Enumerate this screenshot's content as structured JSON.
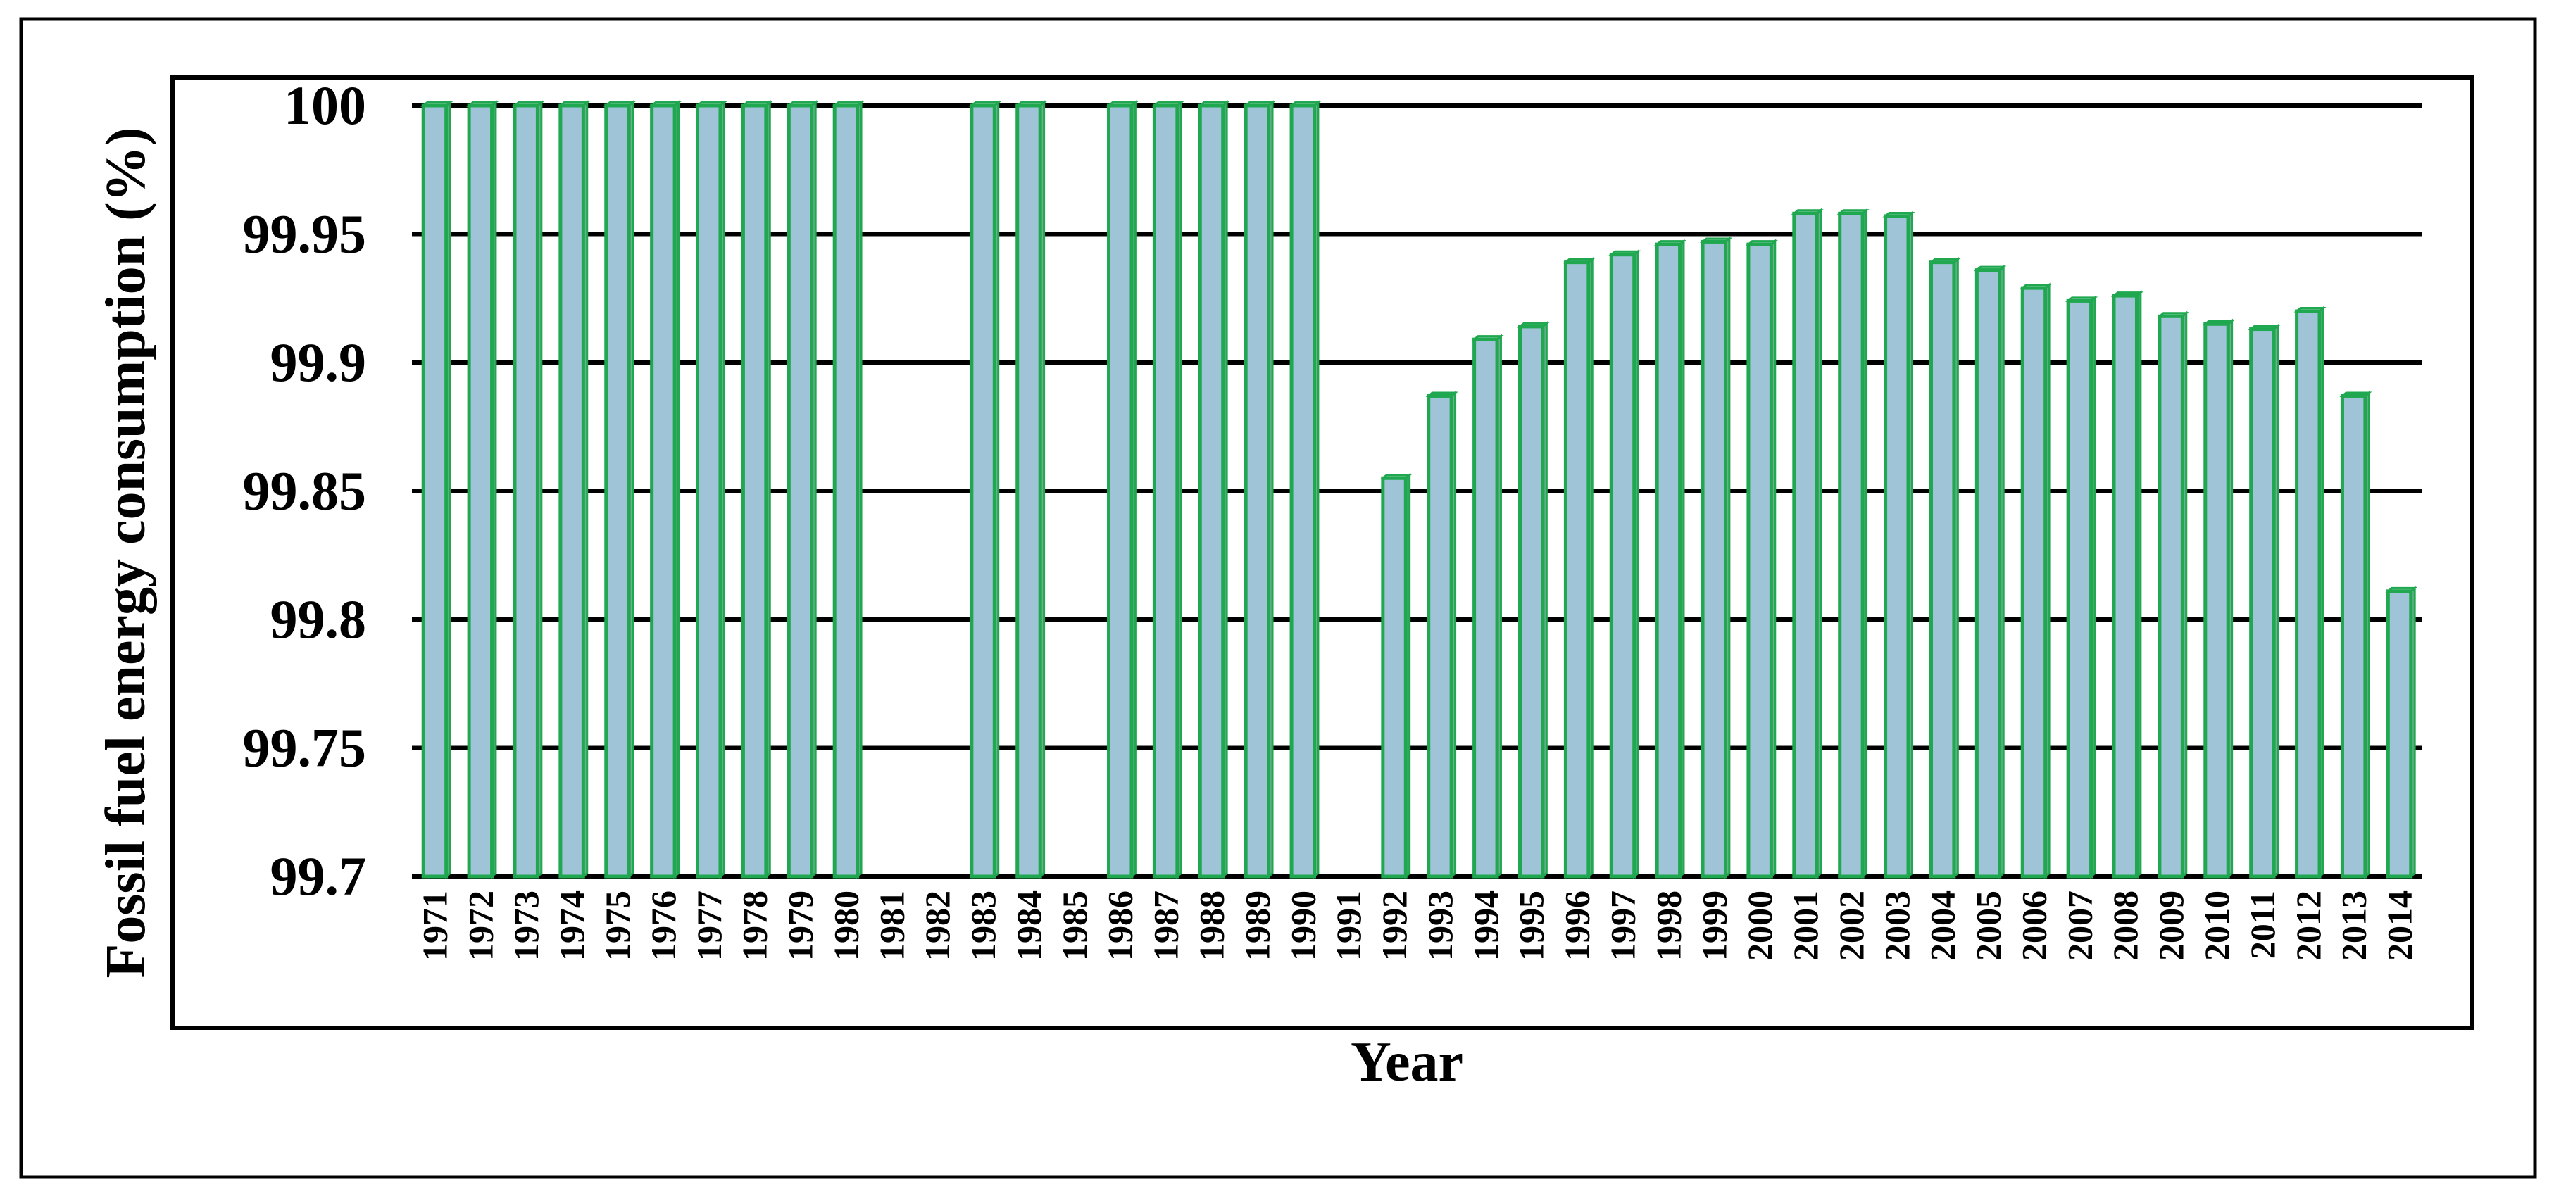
{
  "chart_data": {
    "type": "bar",
    "xlabel": "Year",
    "ylabel": "Fossil fuel energy consumption (%)",
    "ylim": [
      99.7,
      100
    ],
    "yticks": [
      "99.7",
      "99.75",
      "99.8",
      "99.85",
      "99.9",
      "99.95",
      "100"
    ],
    "grid": true,
    "colors": {
      "bar_fill": "#9fc4d8",
      "bar_edge": "#1fa84f",
      "gridline": "#000000",
      "frame": "#000000"
    },
    "categories": [
      "1971",
      "1972",
      "1973",
      "1974",
      "1975",
      "1976",
      "1977",
      "1978",
      "1979",
      "1980",
      "1981",
      "1982",
      "1983",
      "1984",
      "1985",
      "1986",
      "1987",
      "1988",
      "1989",
      "1990",
      "1991",
      "1992",
      "1993",
      "1994",
      "1995",
      "1996",
      "1997",
      "1998",
      "1999",
      "2000",
      "2001",
      "2002",
      "2003",
      "2004",
      "2005",
      "2006",
      "2007",
      "2008",
      "2009",
      "2010",
      "2011",
      "2012",
      "2013",
      "2014"
    ],
    "values": [
      100,
      100,
      100,
      100,
      100,
      100,
      100,
      100,
      100,
      100,
      null,
      null,
      100,
      100,
      null,
      100,
      100,
      100,
      100,
      100,
      null,
      99.855,
      99.887,
      99.909,
      99.914,
      99.939,
      99.942,
      99.946,
      99.947,
      99.946,
      99.958,
      99.958,
      99.957,
      99.939,
      99.936,
      99.929,
      99.924,
      99.926,
      99.918,
      99.915,
      99.913,
      99.92,
      99.887,
      99.811
    ]
  }
}
